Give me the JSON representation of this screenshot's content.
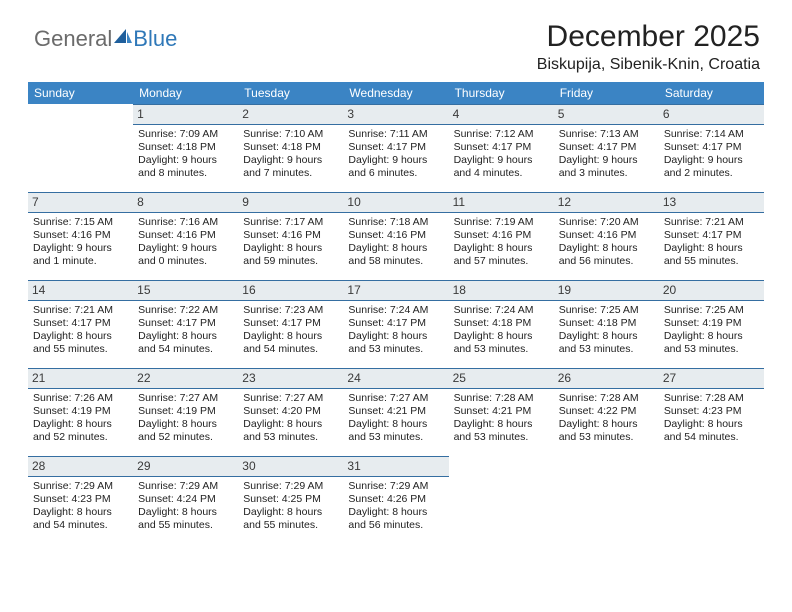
{
  "colors": {
    "header_bg": "#3b84c4",
    "header_text": "#ffffff",
    "daynum_bg": "#e7ecef",
    "daynum_border": "#356ea1",
    "body_text": "#222222",
    "logo_gray": "#6b6b6b",
    "logo_blue": "#2f78b8",
    "page_bg": "#ffffff"
  },
  "typography": {
    "title_fontsize": 30,
    "subtitle_fontsize": 16,
    "dayhead_fontsize": 12,
    "cell_fontsize": 10.5
  },
  "logo": {
    "text1": "General",
    "text2": "Blue"
  },
  "title": "December 2025",
  "subtitle": "Biskupija, Sibenik-Knin, Croatia",
  "day_names": [
    "Sunday",
    "Monday",
    "Tuesday",
    "Wednesday",
    "Thursday",
    "Friday",
    "Saturday"
  ],
  "weeks": [
    [
      {
        "n": "",
        "sr": "",
        "ss": "",
        "dl": ""
      },
      {
        "n": "1",
        "sr": "Sunrise: 7:09 AM",
        "ss": "Sunset: 4:18 PM",
        "dl": "Daylight: 9 hours and 8 minutes."
      },
      {
        "n": "2",
        "sr": "Sunrise: 7:10 AM",
        "ss": "Sunset: 4:18 PM",
        "dl": "Daylight: 9 hours and 7 minutes."
      },
      {
        "n": "3",
        "sr": "Sunrise: 7:11 AM",
        "ss": "Sunset: 4:17 PM",
        "dl": "Daylight: 9 hours and 6 minutes."
      },
      {
        "n": "4",
        "sr": "Sunrise: 7:12 AM",
        "ss": "Sunset: 4:17 PM",
        "dl": "Daylight: 9 hours and 4 minutes."
      },
      {
        "n": "5",
        "sr": "Sunrise: 7:13 AM",
        "ss": "Sunset: 4:17 PM",
        "dl": "Daylight: 9 hours and 3 minutes."
      },
      {
        "n": "6",
        "sr": "Sunrise: 7:14 AM",
        "ss": "Sunset: 4:17 PM",
        "dl": "Daylight: 9 hours and 2 minutes."
      }
    ],
    [
      {
        "n": "7",
        "sr": "Sunrise: 7:15 AM",
        "ss": "Sunset: 4:16 PM",
        "dl": "Daylight: 9 hours and 1 minute."
      },
      {
        "n": "8",
        "sr": "Sunrise: 7:16 AM",
        "ss": "Sunset: 4:16 PM",
        "dl": "Daylight: 9 hours and 0 minutes."
      },
      {
        "n": "9",
        "sr": "Sunrise: 7:17 AM",
        "ss": "Sunset: 4:16 PM",
        "dl": "Daylight: 8 hours and 59 minutes."
      },
      {
        "n": "10",
        "sr": "Sunrise: 7:18 AM",
        "ss": "Sunset: 4:16 PM",
        "dl": "Daylight: 8 hours and 58 minutes."
      },
      {
        "n": "11",
        "sr": "Sunrise: 7:19 AM",
        "ss": "Sunset: 4:16 PM",
        "dl": "Daylight: 8 hours and 57 minutes."
      },
      {
        "n": "12",
        "sr": "Sunrise: 7:20 AM",
        "ss": "Sunset: 4:16 PM",
        "dl": "Daylight: 8 hours and 56 minutes."
      },
      {
        "n": "13",
        "sr": "Sunrise: 7:21 AM",
        "ss": "Sunset: 4:17 PM",
        "dl": "Daylight: 8 hours and 55 minutes."
      }
    ],
    [
      {
        "n": "14",
        "sr": "Sunrise: 7:21 AM",
        "ss": "Sunset: 4:17 PM",
        "dl": "Daylight: 8 hours and 55 minutes."
      },
      {
        "n": "15",
        "sr": "Sunrise: 7:22 AM",
        "ss": "Sunset: 4:17 PM",
        "dl": "Daylight: 8 hours and 54 minutes."
      },
      {
        "n": "16",
        "sr": "Sunrise: 7:23 AM",
        "ss": "Sunset: 4:17 PM",
        "dl": "Daylight: 8 hours and 54 minutes."
      },
      {
        "n": "17",
        "sr": "Sunrise: 7:24 AM",
        "ss": "Sunset: 4:17 PM",
        "dl": "Daylight: 8 hours and 53 minutes."
      },
      {
        "n": "18",
        "sr": "Sunrise: 7:24 AM",
        "ss": "Sunset: 4:18 PM",
        "dl": "Daylight: 8 hours and 53 minutes."
      },
      {
        "n": "19",
        "sr": "Sunrise: 7:25 AM",
        "ss": "Sunset: 4:18 PM",
        "dl": "Daylight: 8 hours and 53 minutes."
      },
      {
        "n": "20",
        "sr": "Sunrise: 7:25 AM",
        "ss": "Sunset: 4:19 PM",
        "dl": "Daylight: 8 hours and 53 minutes."
      }
    ],
    [
      {
        "n": "21",
        "sr": "Sunrise: 7:26 AM",
        "ss": "Sunset: 4:19 PM",
        "dl": "Daylight: 8 hours and 52 minutes."
      },
      {
        "n": "22",
        "sr": "Sunrise: 7:27 AM",
        "ss": "Sunset: 4:19 PM",
        "dl": "Daylight: 8 hours and 52 minutes."
      },
      {
        "n": "23",
        "sr": "Sunrise: 7:27 AM",
        "ss": "Sunset: 4:20 PM",
        "dl": "Daylight: 8 hours and 53 minutes."
      },
      {
        "n": "24",
        "sr": "Sunrise: 7:27 AM",
        "ss": "Sunset: 4:21 PM",
        "dl": "Daylight: 8 hours and 53 minutes."
      },
      {
        "n": "25",
        "sr": "Sunrise: 7:28 AM",
        "ss": "Sunset: 4:21 PM",
        "dl": "Daylight: 8 hours and 53 minutes."
      },
      {
        "n": "26",
        "sr": "Sunrise: 7:28 AM",
        "ss": "Sunset: 4:22 PM",
        "dl": "Daylight: 8 hours and 53 minutes."
      },
      {
        "n": "27",
        "sr": "Sunrise: 7:28 AM",
        "ss": "Sunset: 4:23 PM",
        "dl": "Daylight: 8 hours and 54 minutes."
      }
    ],
    [
      {
        "n": "28",
        "sr": "Sunrise: 7:29 AM",
        "ss": "Sunset: 4:23 PM",
        "dl": "Daylight: 8 hours and 54 minutes."
      },
      {
        "n": "29",
        "sr": "Sunrise: 7:29 AM",
        "ss": "Sunset: 4:24 PM",
        "dl": "Daylight: 8 hours and 55 minutes."
      },
      {
        "n": "30",
        "sr": "Sunrise: 7:29 AM",
        "ss": "Sunset: 4:25 PM",
        "dl": "Daylight: 8 hours and 55 minutes."
      },
      {
        "n": "31",
        "sr": "Sunrise: 7:29 AM",
        "ss": "Sunset: 4:26 PM",
        "dl": "Daylight: 8 hours and 56 minutes."
      },
      {
        "n": "",
        "sr": "",
        "ss": "",
        "dl": ""
      },
      {
        "n": "",
        "sr": "",
        "ss": "",
        "dl": ""
      },
      {
        "n": "",
        "sr": "",
        "ss": "",
        "dl": ""
      }
    ]
  ]
}
